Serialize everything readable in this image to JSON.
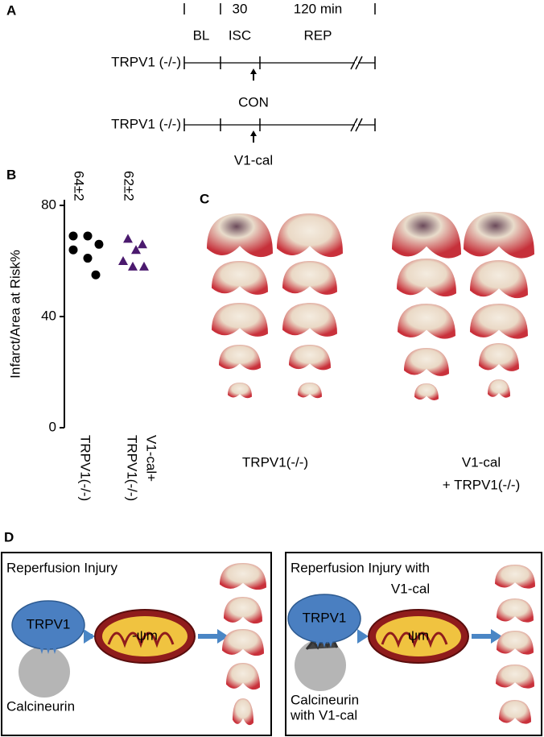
{
  "panel_labels": [
    "A",
    "B",
    "C",
    "D"
  ],
  "timeline": {
    "header": [
      "30",
      "120 min"
    ],
    "phases": [
      "BL",
      "ISC",
      "REP"
    ],
    "rows": [
      {
        "label": "TRPV1 (-/-)",
        "treatment": "CON"
      },
      {
        "label": "TRPV1 (-/-)",
        "treatment": "V1-cal"
      }
    ]
  },
  "chart_data": {
    "type": "strip",
    "ylabel": "Infarct/Area at Risk%",
    "categories": [
      [
        "TRPV1(-/-)"
      ],
      [
        "V1-cal+",
        "TRPV1(-/-)"
      ]
    ],
    "values": [
      [
        69,
        69,
        66,
        64,
        61,
        55
      ],
      [
        68,
        66,
        64,
        60,
        58,
        58
      ]
    ],
    "annotations": [
      "64±2",
      "62±2"
    ],
    "markers": [
      "circle",
      "triangle"
    ],
    "colors": [
      "#000000",
      "#4b1a6e"
    ],
    "ylim": [
      0,
      80
    ],
    "yticks": [
      0,
      40,
      80
    ]
  },
  "photos": {
    "labels": [
      [
        "TRPV1(-/-)"
      ],
      [
        "V1-cal",
        "+ TRPV1(-/-)"
      ]
    ]
  },
  "diagram": {
    "panels": [
      {
        "title": [
          "Reperfusion Injury"
        ],
        "protein": "TRPV1",
        "partner": [
          "Calcineurin"
        ],
        "potential": "-ψm"
      },
      {
        "title": [
          "Reperfusion Injury with",
          "V1-cal"
        ],
        "protein": "TRPV1",
        "partner": [
          "Calcineurin",
          "with V1-cal"
        ],
        "potential": "ψm"
      }
    ]
  }
}
